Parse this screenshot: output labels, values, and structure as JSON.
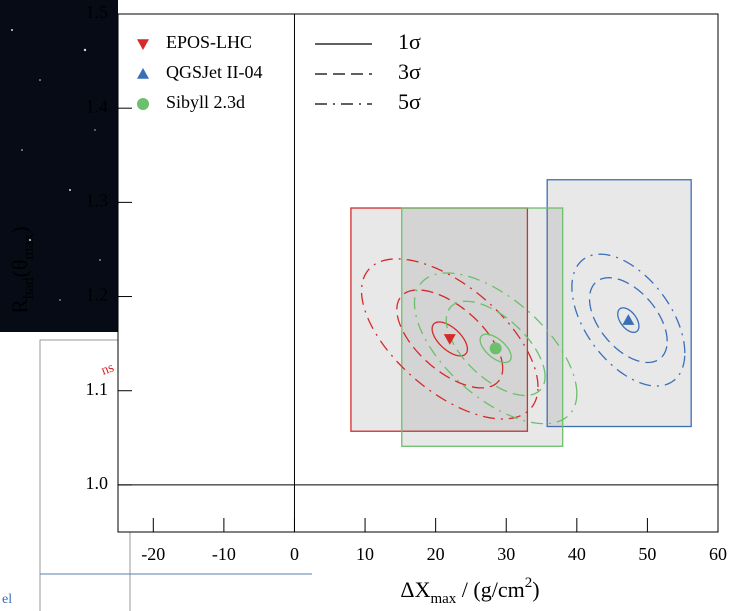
{
  "chart_data": {
    "type": "scatter",
    "xlabel_parts": [
      {
        "text": "ΔX"
      },
      {
        "text": "max",
        "shift": "sub"
      },
      {
        "text": " / (g/cm"
      },
      {
        "text": "2",
        "shift": "sup"
      },
      {
        "text": ")"
      }
    ],
    "ylabel_parts": [
      {
        "text": "R"
      },
      {
        "text": "had",
        "shift": "sub"
      },
      {
        "text": "(θ"
      },
      {
        "text": "max",
        "shift": "sub"
      },
      {
        "text": ")"
      }
    ],
    "xlim": [
      -25,
      60
    ],
    "ylim": [
      0.95,
      1.5
    ],
    "xticks": [
      -20,
      -10,
      0,
      10,
      20,
      30,
      40,
      50,
      60
    ],
    "yticks": [
      {
        "value": 1.0,
        "label": "1.0"
      },
      1.1,
      1.2,
      1.3,
      1.4,
      1.5
    ],
    "reference_lines": {
      "x": 0,
      "y": 1.0
    },
    "contour_styles": [
      {
        "label": "1σ",
        "dash": "none"
      },
      {
        "label": "3σ",
        "dash": "12 6"
      },
      {
        "label": "5σ",
        "dash": "12 6 2 6"
      }
    ],
    "series": [
      {
        "name": "EPOS-LHC",
        "color": "#d42a2a",
        "marker": "triangle-down",
        "x": 22,
        "y": 1.155,
        "sigma_x": [
          2.5,
          7.5,
          12.5
        ],
        "sigma_y": [
          0.018,
          0.052,
          0.085
        ],
        "correlation": -0.6,
        "sys_x": [
          8,
          33
        ],
        "sys_y": [
          1.057,
          1.294
        ]
      },
      {
        "name": "QGSJet II-04",
        "color": "#3a6fb8",
        "marker": "triangle-up",
        "x": 47.3,
        "y": 1.175,
        "sigma_x": [
          1.5,
          5.5,
          8
        ],
        "sigma_y": [
          0.013,
          0.045,
          0.07
        ],
        "correlation": -0.5,
        "sys_x": [
          35.8,
          56.2
        ],
        "sys_y": [
          1.062,
          1.324
        ]
      },
      {
        "name": "Sibyll 2.3d",
        "color": "#6cbf6c",
        "marker": "circle",
        "x": 28.5,
        "y": 1.145,
        "sigma_x": [
          2.2,
          7,
          11.5
        ],
        "sigma_y": [
          0.015,
          0.05,
          0.08
        ],
        "correlation": -0.6,
        "sys_x": [
          15.2,
          38
        ],
        "sys_y": [
          1.041,
          1.294
        ]
      }
    ],
    "background_fragments": [
      "ns",
      "el"
    ]
  }
}
